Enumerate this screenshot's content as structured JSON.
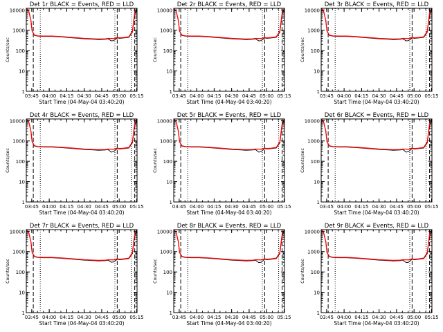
{
  "xlabel": "Start Time (04-May-04 03:40:20)",
  "ylabel": "Counts/sec",
  "x_ticks": [
    "03:45",
    "04:00",
    "04:15",
    "04:30",
    "04:45",
    "05:00",
    "05:15"
  ],
  "y_ticks": [
    "1",
    "10",
    "100",
    "1000",
    "10000"
  ],
  "colors": {
    "events": "#000000",
    "lld": "#ff0000"
  },
  "chart_data": [
    {
      "type": "line",
      "title": "Det 1r BLACK = Events, RED = LLD",
      "xlim_minutes": [
        0,
        95
      ],
      "ylim": [
        1,
        12000
      ],
      "y_scale": "log",
      "x_minutes": [
        0,
        2,
        4,
        5,
        7,
        10,
        15,
        22,
        30,
        40,
        50,
        58,
        62,
        68,
        70,
        73,
        75,
        78,
        80,
        84,
        88,
        91,
        93,
        95
      ],
      "series": [
        {
          "name": "Events",
          "values": [
            12000,
            9000,
            3000,
            900,
            560,
            510,
            500,
            500,
            470,
            420,
            380,
            360,
            350,
            360,
            380,
            300,
            310,
            420,
            400,
            420,
            450,
            800,
            6000,
            12000
          ]
        },
        {
          "name": "LLD",
          "values": [
            12000,
            9000,
            3000,
            920,
            580,
            530,
            520,
            520,
            490,
            440,
            400,
            380,
            370,
            380,
            400,
            395,
            390,
            440,
            420,
            440,
            480,
            900,
            7000,
            12000
          ]
        }
      ],
      "dashed_x_minutes": [
        6,
        78,
        93
      ],
      "dotted_x_minutes": [
        12,
        76,
        90
      ]
    },
    {
      "type": "line",
      "title": "Det 2r BLACK = Events, RED = LLD",
      "xlim_minutes": [
        0,
        95
      ],
      "ylim": [
        1,
        12000
      ],
      "y_scale": "log",
      "x_minutes": [
        0,
        2,
        4,
        5,
        7,
        10,
        15,
        22,
        30,
        40,
        50,
        58,
        62,
        68,
        70,
        73,
        75,
        78,
        80,
        84,
        88,
        91,
        93,
        95
      ],
      "series": [
        {
          "name": "Events",
          "values": [
            12000,
            9000,
            3000,
            900,
            560,
            510,
            500,
            500,
            470,
            420,
            380,
            360,
            350,
            360,
            380,
            300,
            310,
            420,
            400,
            420,
            450,
            800,
            6000,
            12000
          ]
        },
        {
          "name": "LLD",
          "values": [
            12000,
            9000,
            3000,
            920,
            580,
            530,
            520,
            520,
            490,
            440,
            400,
            380,
            370,
            380,
            400,
            395,
            390,
            440,
            420,
            440,
            480,
            900,
            7000,
            12000
          ]
        }
      ],
      "dashed_x_minutes": [
        6,
        78,
        93
      ],
      "dotted_x_minutes": [
        12,
        76,
        90
      ]
    },
    {
      "type": "line",
      "title": "Det 3r BLACK = Events, RED = LLD",
      "xlim_minutes": [
        0,
        95
      ],
      "ylim": [
        1,
        12000
      ],
      "y_scale": "log",
      "x_minutes": [
        0,
        2,
        4,
        5,
        7,
        10,
        15,
        22,
        30,
        40,
        50,
        58,
        62,
        68,
        70,
        73,
        75,
        78,
        80,
        84,
        88,
        91,
        93,
        95
      ],
      "series": [
        {
          "name": "Events",
          "values": [
            12000,
            9000,
            3000,
            900,
            560,
            510,
            500,
            500,
            470,
            420,
            380,
            360,
            350,
            360,
            380,
            300,
            310,
            420,
            400,
            420,
            450,
            800,
            6000,
            12000
          ]
        },
        {
          "name": "LLD",
          "values": [
            12000,
            9000,
            3000,
            920,
            580,
            530,
            520,
            520,
            490,
            440,
            400,
            380,
            370,
            380,
            400,
            395,
            390,
            440,
            420,
            440,
            480,
            900,
            7000,
            12000
          ]
        }
      ],
      "dashed_x_minutes": [
        6,
        78,
        93
      ],
      "dotted_x_minutes": [
        12,
        76,
        90
      ]
    },
    {
      "type": "line",
      "title": "Det 4r BLACK = Events, RED = LLD",
      "xlim_minutes": [
        0,
        95
      ],
      "ylim": [
        1,
        12000
      ],
      "y_scale": "log",
      "x_minutes": [
        0,
        2,
        4,
        5,
        7,
        10,
        15,
        22,
        30,
        40,
        50,
        58,
        62,
        68,
        70,
        73,
        75,
        78,
        80,
        84,
        88,
        91,
        93,
        95
      ],
      "series": [
        {
          "name": "Events",
          "values": [
            12000,
            9000,
            3000,
            900,
            560,
            510,
            500,
            500,
            470,
            420,
            380,
            360,
            350,
            360,
            380,
            280,
            300,
            420,
            400,
            420,
            450,
            800,
            6000,
            12000
          ]
        },
        {
          "name": "LLD",
          "values": [
            12000,
            9000,
            3000,
            920,
            580,
            530,
            520,
            520,
            490,
            440,
            400,
            380,
            370,
            380,
            400,
            395,
            390,
            440,
            420,
            440,
            480,
            900,
            7000,
            12000
          ]
        }
      ],
      "dashed_x_minutes": [
        6,
        78,
        93
      ],
      "dotted_x_minutes": [
        12,
        76,
        90
      ]
    },
    {
      "type": "line",
      "title": "Det 5r BLACK = Events, RED = LLD",
      "xlim_minutes": [
        0,
        95
      ],
      "ylim": [
        1,
        12000
      ],
      "y_scale": "log",
      "x_minutes": [
        0,
        2,
        4,
        5,
        7,
        10,
        15,
        22,
        30,
        40,
        50,
        58,
        62,
        68,
        70,
        73,
        75,
        78,
        80,
        84,
        88,
        91,
        93,
        95
      ],
      "series": [
        {
          "name": "Events",
          "values": [
            12000,
            9000,
            3000,
            900,
            560,
            510,
            500,
            500,
            470,
            420,
            380,
            360,
            350,
            360,
            380,
            280,
            300,
            420,
            400,
            420,
            450,
            800,
            6000,
            12000
          ]
        },
        {
          "name": "LLD",
          "values": [
            12000,
            9000,
            3000,
            920,
            580,
            530,
            520,
            520,
            490,
            440,
            400,
            380,
            370,
            380,
            400,
            395,
            390,
            440,
            420,
            440,
            480,
            900,
            7000,
            12000
          ]
        }
      ],
      "dashed_x_minutes": [
        6,
        78,
        93
      ],
      "dotted_x_minutes": [
        12,
        76,
        90
      ]
    },
    {
      "type": "line",
      "title": "Det 6r BLACK = Events, RED = LLD",
      "xlim_minutes": [
        0,
        95
      ],
      "ylim": [
        1,
        12000
      ],
      "y_scale": "log",
      "x_minutes": [
        0,
        2,
        4,
        5,
        7,
        10,
        15,
        22,
        30,
        40,
        50,
        58,
        62,
        68,
        70,
        73,
        75,
        78,
        80,
        84,
        88,
        91,
        93,
        95
      ],
      "series": [
        {
          "name": "Events",
          "values": [
            12000,
            9000,
            3000,
            900,
            560,
            510,
            500,
            500,
            470,
            420,
            380,
            360,
            350,
            360,
            380,
            280,
            300,
            420,
            400,
            420,
            450,
            800,
            6000,
            12000
          ]
        },
        {
          "name": "LLD",
          "values": [
            12000,
            9000,
            3000,
            920,
            580,
            530,
            520,
            520,
            490,
            440,
            400,
            380,
            370,
            380,
            400,
            395,
            390,
            440,
            420,
            440,
            480,
            900,
            7000,
            12000
          ]
        }
      ],
      "dashed_x_minutes": [
        6,
        78,
        93
      ],
      "dotted_x_minutes": [
        12,
        76,
        90
      ]
    },
    {
      "type": "line",
      "title": "Det 7r BLACK = Events, RED = LLD",
      "xlim_minutes": [
        0,
        95
      ],
      "ylim": [
        1,
        12000
      ],
      "y_scale": "log",
      "x_minutes": [
        0,
        2,
        4,
        5,
        7,
        10,
        15,
        22,
        30,
        40,
        50,
        58,
        62,
        68,
        70,
        73,
        75,
        78,
        80,
        84,
        88,
        91,
        93,
        95
      ],
      "series": [
        {
          "name": "Events",
          "values": [
            12000,
            9000,
            3000,
            900,
            560,
            510,
            500,
            500,
            470,
            420,
            380,
            360,
            350,
            360,
            380,
            300,
            310,
            420,
            400,
            420,
            450,
            800,
            6000,
            12000
          ]
        },
        {
          "name": "LLD",
          "values": [
            12000,
            9000,
            3000,
            920,
            580,
            530,
            520,
            520,
            490,
            440,
            400,
            380,
            370,
            380,
            400,
            395,
            390,
            440,
            420,
            440,
            480,
            900,
            7000,
            12000
          ]
        }
      ],
      "dashed_x_minutes": [
        6,
        78,
        93
      ],
      "dotted_x_minutes": [
        12,
        76,
        90
      ]
    },
    {
      "type": "line",
      "title": "Det 8r BLACK = Events, RED = LLD",
      "xlim_minutes": [
        0,
        95
      ],
      "ylim": [
        1,
        12000
      ],
      "y_scale": "log",
      "x_minutes": [
        0,
        2,
        4,
        5,
        7,
        10,
        15,
        22,
        30,
        40,
        50,
        58,
        62,
        68,
        70,
        73,
        75,
        78,
        80,
        84,
        88,
        91,
        93,
        95
      ],
      "series": [
        {
          "name": "Events",
          "values": [
            12000,
            9000,
            3000,
            900,
            560,
            510,
            500,
            500,
            470,
            420,
            380,
            360,
            350,
            360,
            380,
            290,
            300,
            420,
            400,
            420,
            450,
            800,
            6000,
            12000
          ]
        },
        {
          "name": "LLD",
          "values": [
            12000,
            9000,
            3000,
            920,
            580,
            530,
            520,
            520,
            490,
            440,
            400,
            380,
            370,
            380,
            400,
            395,
            390,
            440,
            420,
            440,
            480,
            900,
            7000,
            12000
          ]
        }
      ],
      "dashed_x_minutes": [
        6,
        78,
        93
      ],
      "dotted_x_minutes": [
        12,
        76,
        90
      ]
    },
    {
      "type": "line",
      "title": "Det 9r BLACK = Events, RED = LLD",
      "xlim_minutes": [
        0,
        95
      ],
      "ylim": [
        1,
        12000
      ],
      "y_scale": "log",
      "x_minutes": [
        0,
        2,
        4,
        5,
        7,
        10,
        15,
        22,
        30,
        40,
        50,
        58,
        62,
        68,
        70,
        73,
        75,
        78,
        80,
        84,
        88,
        91,
        93,
        95
      ],
      "series": [
        {
          "name": "Events",
          "values": [
            12000,
            9000,
            3000,
            900,
            560,
            510,
            500,
            500,
            470,
            420,
            380,
            360,
            350,
            360,
            380,
            290,
            300,
            420,
            400,
            420,
            450,
            800,
            6000,
            12000
          ]
        },
        {
          "name": "LLD",
          "values": [
            12000,
            9000,
            3000,
            920,
            580,
            530,
            520,
            520,
            490,
            440,
            400,
            380,
            370,
            380,
            400,
            395,
            390,
            440,
            420,
            440,
            480,
            900,
            7000,
            12000
          ]
        }
      ],
      "dashed_x_minutes": [
        6,
        78,
        93
      ],
      "dotted_x_minutes": [
        12,
        76,
        90
      ]
    }
  ]
}
